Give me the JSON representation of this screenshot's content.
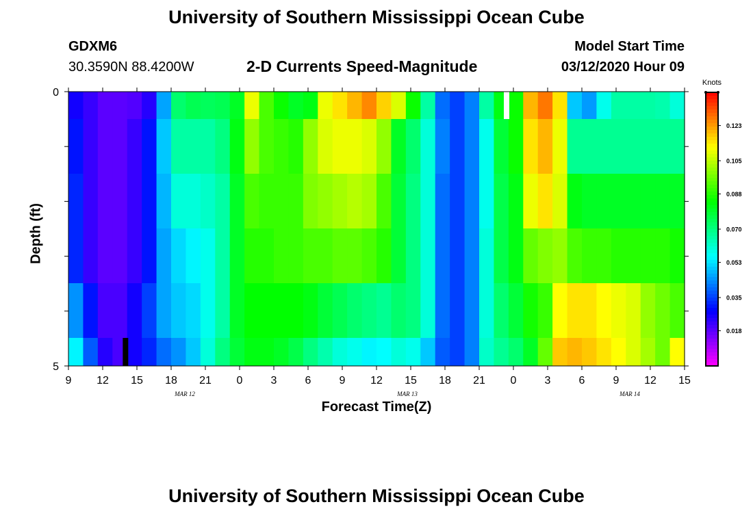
{
  "header": {
    "title_top": "University of Southern Mississippi Ocean Cube",
    "title_bottom": "University of Southern Mississippi Ocean Cube",
    "station": "GDXM6",
    "coords": "30.3590N 88.4200W",
    "plot_title": "2-D Currents Speed-Magnitude",
    "start_label": "Model Start Time",
    "start_value": "03/12/2020 Hour 09"
  },
  "chart_data": {
    "type": "heatmap",
    "title": "2-D Currents Speed-Magnitude",
    "xlabel": "Forecast Time(Z)",
    "ylabel": "Depth (ft)",
    "x_ticks": [
      "9",
      "12",
      "15",
      "18",
      "21",
      "0",
      "3",
      "6",
      "9",
      "12",
      "15",
      "18",
      "21",
      "0",
      "3",
      "6",
      "9",
      "12",
      "15"
    ],
    "date_labels": [
      "MAR 12",
      "MAR 13",
      "MAR 14"
    ],
    "y_ticks": [
      "0",
      "5"
    ],
    "ylim": [
      0,
      5
    ],
    "colorbar": {
      "unit": "Knots",
      "ticks": [
        "0.123",
        "0.105",
        "0.088",
        "0.070",
        "0.053",
        "0.035",
        "0.018"
      ],
      "range": [
        0.0,
        0.14
      ]
    },
    "depth_layers": [
      "0-0.5",
      "0.5-1.5",
      "1.5-2.5",
      "2.5-3.5",
      "3.5-4.5",
      "4.5-5"
    ],
    "series": [
      {
        "values": [
          0.026,
          0.022,
          0.018,
          0.018,
          0.019,
          0.024,
          0.046,
          0.072,
          0.075,
          0.074,
          0.075,
          0.08,
          0.11,
          0.092,
          0.085,
          0.08,
          0.082,
          0.11,
          0.115,
          0.12,
          0.125,
          0.117,
          0.108,
          0.085,
          0.066,
          0.04,
          0.035,
          0.042,
          0.066,
          0.082,
          0.085,
          0.12,
          0.127,
          0.115,
          0.05,
          0.045,
          0.058,
          0.066,
          0.066,
          0.066,
          0.065,
          0.06
        ]
      },
      {
        "values": [
          0.03,
          0.022,
          0.018,
          0.018,
          0.022,
          0.03,
          0.05,
          0.066,
          0.066,
          0.066,
          0.07,
          0.082,
          0.1,
          0.092,
          0.09,
          0.088,
          0.1,
          0.108,
          0.11,
          0.11,
          0.108,
          0.1,
          0.08,
          0.072,
          0.06,
          0.042,
          0.035,
          0.042,
          0.058,
          0.078,
          0.085,
          0.115,
          0.12,
          0.11,
          0.068,
          0.068,
          0.068,
          0.068,
          0.068,
          0.068,
          0.068,
          0.068
        ]
      },
      {
        "values": [
          0.032,
          0.022,
          0.018,
          0.018,
          0.022,
          0.03,
          0.048,
          0.06,
          0.06,
          0.062,
          0.066,
          0.08,
          0.092,
          0.09,
          0.09,
          0.09,
          0.098,
          0.1,
          0.102,
          0.104,
          0.102,
          0.092,
          0.078,
          0.07,
          0.06,
          0.04,
          0.035,
          0.042,
          0.058,
          0.076,
          0.082,
          0.11,
          0.115,
          0.108,
          0.082,
          0.08,
          0.08,
          0.08,
          0.08,
          0.08,
          0.08,
          0.08
        ]
      },
      {
        "values": [
          0.032,
          0.022,
          0.018,
          0.018,
          0.022,
          0.03,
          0.046,
          0.052,
          0.055,
          0.058,
          0.066,
          0.08,
          0.088,
          0.088,
          0.09,
          0.09,
          0.092,
          0.092,
          0.094,
          0.094,
          0.092,
          0.088,
          0.078,
          0.07,
          0.06,
          0.04,
          0.035,
          0.042,
          0.06,
          0.076,
          0.082,
          0.095,
          0.098,
          0.1,
          0.092,
          0.09,
          0.09,
          0.088,
          0.088,
          0.088,
          0.088,
          0.086
        ]
      },
      {
        "values": [
          0.044,
          0.03,
          0.02,
          0.02,
          0.026,
          0.035,
          0.046,
          0.05,
          0.052,
          0.058,
          0.066,
          0.08,
          0.084,
          0.084,
          0.084,
          0.084,
          0.082,
          0.078,
          0.075,
          0.072,
          0.07,
          0.068,
          0.072,
          0.07,
          0.06,
          0.04,
          0.035,
          0.042,
          0.06,
          0.072,
          0.078,
          0.086,
          0.09,
          0.112,
          0.115,
          0.115,
          0.112,
          0.11,
          0.108,
          0.1,
          0.096,
          0.092
        ]
      },
      {
        "values": [
          0.055,
          0.038,
          0.024,
          0.02,
          0.026,
          0.032,
          0.04,
          0.044,
          0.05,
          0.06,
          0.07,
          0.078,
          0.082,
          0.082,
          0.08,
          0.076,
          0.07,
          0.065,
          0.06,
          0.058,
          0.055,
          0.056,
          0.06,
          0.058,
          0.05,
          0.038,
          0.035,
          0.042,
          0.062,
          0.068,
          0.072,
          0.08,
          0.095,
          0.118,
          0.12,
          0.118,
          0.115,
          0.112,
          0.108,
          0.102,
          0.096,
          0.112
        ]
      }
    ],
    "x_range_hours": [
      0,
      54
    ],
    "markers": [
      {
        "hour": 5.0,
        "layer": 5,
        "color": "#000000"
      },
      {
        "hour": 38.4,
        "layer": 0,
        "color": "#ffffff"
      }
    ]
  }
}
